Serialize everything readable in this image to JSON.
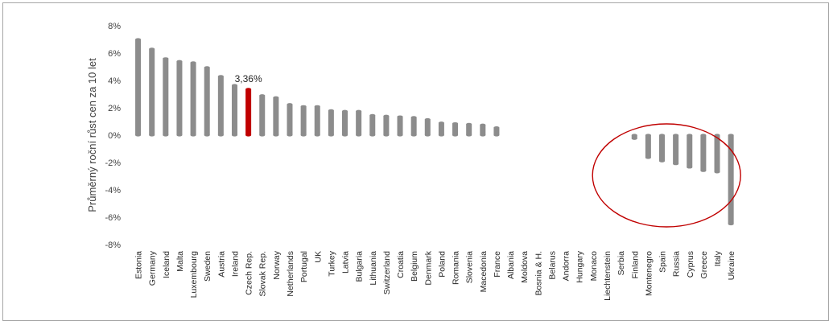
{
  "chart_data": {
    "type": "bar",
    "ylabel": "Průměrný roční růst cen za 10 let",
    "ylim": [
      -8,
      8
    ],
    "yticks": [
      8,
      6,
      4,
      2,
      0,
      -2,
      -4,
      -6,
      -8
    ],
    "ytick_labels": [
      "8%",
      "6%",
      "4%",
      "2%",
      "0%",
      "-2%",
      "-4%",
      "-6%",
      "-8%"
    ],
    "categories": [
      "Estonia",
      "Germany",
      "Iceland",
      "Malta",
      "Luxembourg",
      "Sweden",
      "Austria",
      "Ireland",
      "Czech Rep.",
      "Slovak Rep.",
      "Norway",
      "Netherlands",
      "Portugal",
      "UK",
      "Turkey",
      "Latvia",
      "Bulgaria",
      "Lithuania",
      "Switzerland",
      "Croatia",
      "Belgium",
      "Denmark",
      "Poland",
      "Romania",
      "Slovenia",
      "Macedonia",
      "France",
      "Albania",
      "Moldova",
      "Bosnia & H.",
      "Belarus",
      "Andorra",
      "Hungary",
      "Monaco",
      "Liechtenstein",
      "Serbia",
      "Finland",
      "Montenegro",
      "Spain",
      "Russia",
      "Cyprus",
      "Greece",
      "Italy",
      "Ukraine"
    ],
    "values": [
      7.0,
      6.3,
      5.6,
      5.4,
      5.3,
      4.95,
      4.3,
      3.65,
      3.36,
      2.9,
      2.75,
      2.25,
      2.1,
      2.1,
      1.8,
      1.75,
      1.75,
      1.45,
      1.4,
      1.35,
      1.3,
      1.15,
      0.9,
      0.85,
      0.8,
      0.75,
      0.55,
      0,
      0,
      0,
      0,
      0,
      0,
      0,
      0,
      0,
      -0.25,
      -1.65,
      -1.9,
      -2.1,
      -2.35,
      -2.6,
      -2.7,
      -6.5
    ],
    "highlight": {
      "category": "Czech Rep.",
      "label": "3,36%",
      "color": "#c00000"
    },
    "bar_color": "#8c8c8c",
    "annotation": {
      "shape": "ellipse",
      "color": "#c00000",
      "encloses": [
        "Finland",
        "Montenegro",
        "Spain",
        "Russia",
        "Cyprus",
        "Greece",
        "Italy",
        "Ukraine"
      ]
    },
    "grid": false,
    "legend": "none"
  }
}
